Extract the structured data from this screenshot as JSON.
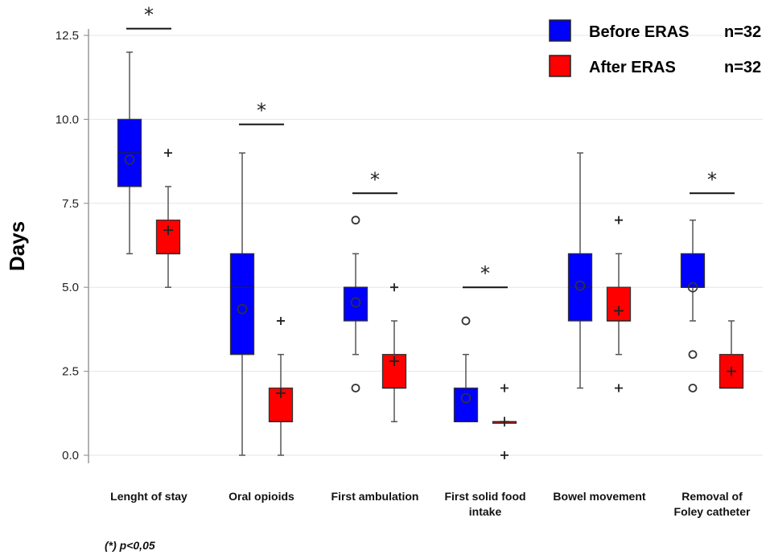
{
  "chart_data": {
    "type": "box",
    "ylabel": "Days",
    "ylim": [
      0,
      12.5
    ],
    "yticks": [
      "0.0",
      "2.5",
      "5.0",
      "7.5",
      "10.0",
      "12.5"
    ],
    "grid": "horizontal",
    "legend_position": "top-right",
    "categories": [
      [
        "Lenght of stay"
      ],
      [
        "Oral opioids"
      ],
      [
        "First  ambulation"
      ],
      [
        "First solid food",
        "intake"
      ],
      [
        "Bowel movement"
      ],
      [
        "Removal  of",
        "Foley catheter"
      ]
    ],
    "series": [
      {
        "name": "Before ERAS",
        "n_label": "n=32",
        "color": "#0000ff",
        "mean_marker": "circle",
        "boxes": [
          {
            "min": 6,
            "q1": 8,
            "median": 9,
            "q3": 10,
            "max": 12,
            "mean": 8.8,
            "outliers": []
          },
          {
            "min": 0,
            "q1": 3,
            "median": 5,
            "q3": 6,
            "max": 9,
            "mean": 4.35,
            "outliers": []
          },
          {
            "min": 3,
            "q1": 4,
            "median": 5,
            "q3": 5,
            "max": 6,
            "mean": 4.55,
            "outliers": [
              7,
              2
            ]
          },
          {
            "min": 1,
            "q1": 1,
            "median": 1,
            "q3": 2,
            "max": 3,
            "mean": 1.7,
            "outliers": [
              4
            ]
          },
          {
            "min": 2,
            "q1": 4,
            "median": 5,
            "q3": 6,
            "max": 9,
            "mean": 5.05,
            "outliers": []
          },
          {
            "min": 4,
            "q1": 5,
            "median": 5,
            "q3": 6,
            "max": 7,
            "mean": 5.0,
            "outliers": [
              3,
              2
            ]
          }
        ]
      },
      {
        "name": "After ERAS",
        "n_label": "n=32",
        "color": "#ff0000",
        "mean_marker": "plus",
        "boxes": [
          {
            "min": 5,
            "q1": 6,
            "median": 6,
            "q3": 7,
            "max": 8,
            "mean": 6.7,
            "outliers": [
              9
            ]
          },
          {
            "min": 0,
            "q1": 1,
            "median": 1,
            "q3": 2,
            "max": 3,
            "mean": 1.85,
            "outliers": [
              4
            ]
          },
          {
            "min": 1,
            "q1": 2,
            "median": 2,
            "q3": 3,
            "max": 4,
            "mean": 2.8,
            "outliers": [
              5
            ]
          },
          {
            "min": 1,
            "q1": 1,
            "median": 1,
            "q3": 1,
            "max": 1,
            "mean": 1.0,
            "outliers": [
              2,
              0
            ]
          },
          {
            "min": 3,
            "q1": 4,
            "median": 4,
            "q3": 5,
            "max": 6,
            "mean": 4.3,
            "outliers": [
              7,
              2
            ]
          },
          {
            "min": 2,
            "q1": 2,
            "median": 2,
            "q3": 3,
            "max": 4,
            "mean": 2.5,
            "outliers": []
          }
        ]
      }
    ],
    "significance": [
      {
        "category": 0,
        "marker": "*",
        "level": 12.7
      },
      {
        "category": 1,
        "marker": "*",
        "level": 9.85
      },
      {
        "category": 2,
        "marker": "*",
        "level": 7.8
      },
      {
        "category": 3,
        "marker": "*",
        "level": 5.0
      },
      {
        "category": 5,
        "marker": "*",
        "level": 7.8
      }
    ],
    "footnote": "(*) p<0,05"
  }
}
